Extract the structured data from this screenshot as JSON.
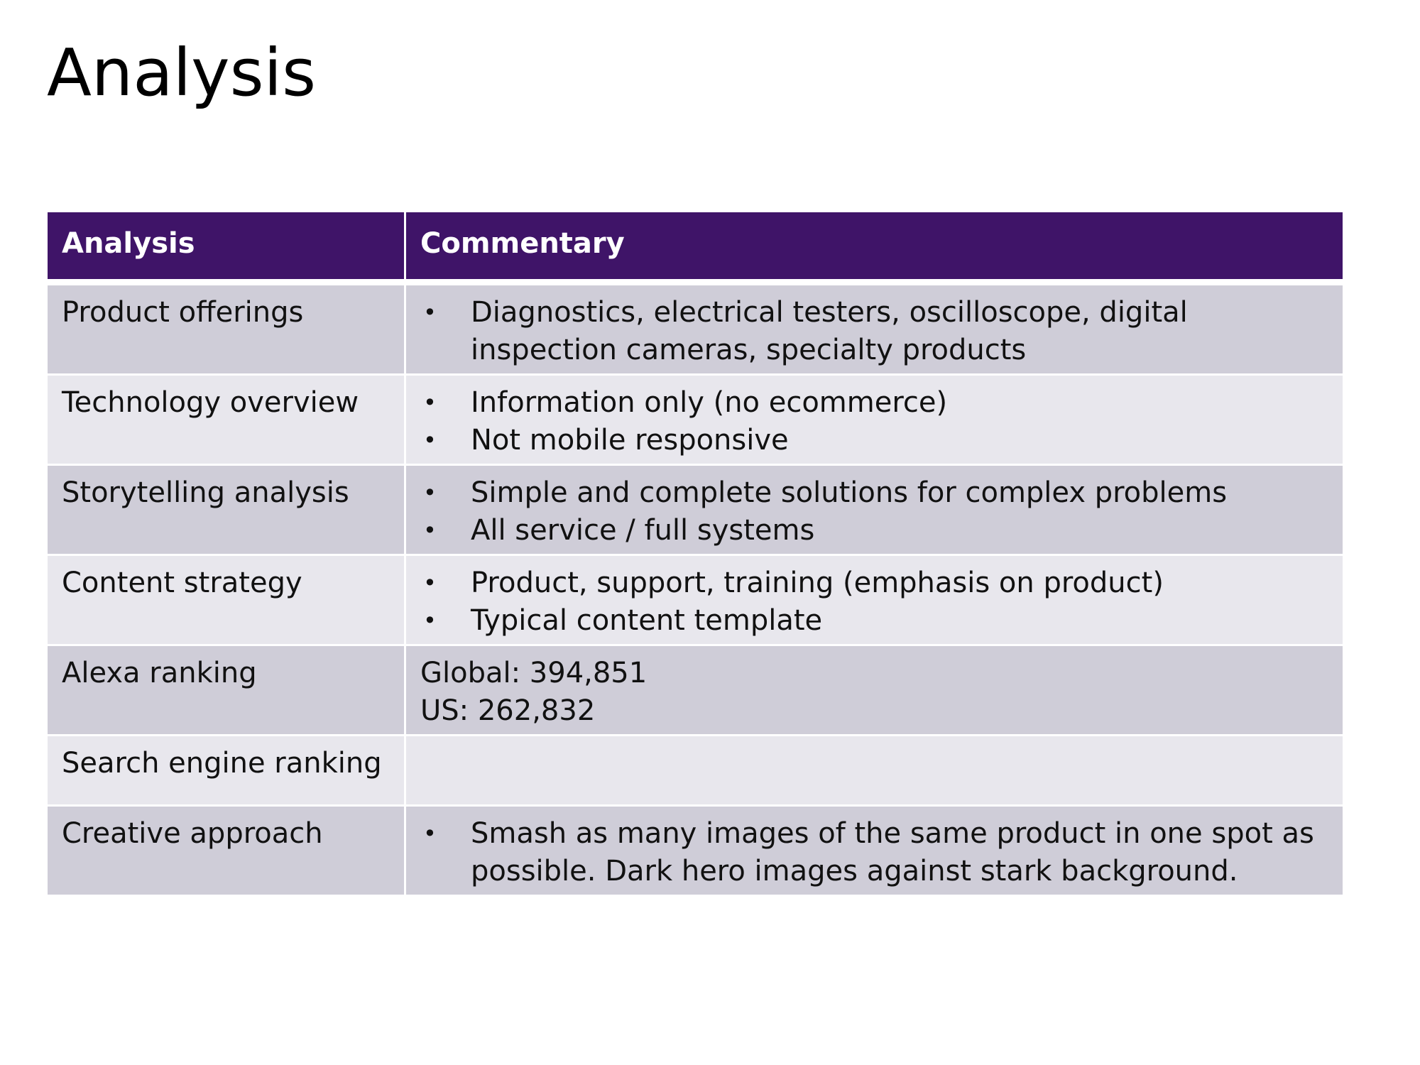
{
  "page": {
    "title": "Analysis"
  },
  "table": {
    "headers": {
      "analysis": "Analysis",
      "commentary": "Commentary"
    },
    "rows": [
      {
        "label": "Product offerings",
        "bullets": [
          "Diagnostics, electrical testers, oscilloscope, digital inspection cameras, specialty products"
        ]
      },
      {
        "label": "Technology overview",
        "bullets": [
          "Information only (no ecommerce)",
          "Not mobile responsive"
        ]
      },
      {
        "label": "Storytelling analysis",
        "bullets": [
          "Simple and complete solutions for complex problems",
          "All service / full systems"
        ]
      },
      {
        "label": "Content strategy",
        "bullets": [
          "Product, support, training (emphasis on product)",
          "Typical content template"
        ]
      },
      {
        "label": "Alexa ranking",
        "lines": [
          "Global: 394,851",
          "US: 262,832"
        ]
      },
      {
        "label": "Search engine ranking",
        "lines": []
      },
      {
        "label": "Creative approach",
        "bullets": [
          "Smash as many images of the same product in one spot as possible. Dark hero images against stark background."
        ]
      }
    ]
  },
  "theme": {
    "header_bg": "#3f1468",
    "row_dark": "#cfcdd8",
    "row_light": "#e8e7ed"
  },
  "bullet_glyph": "•"
}
